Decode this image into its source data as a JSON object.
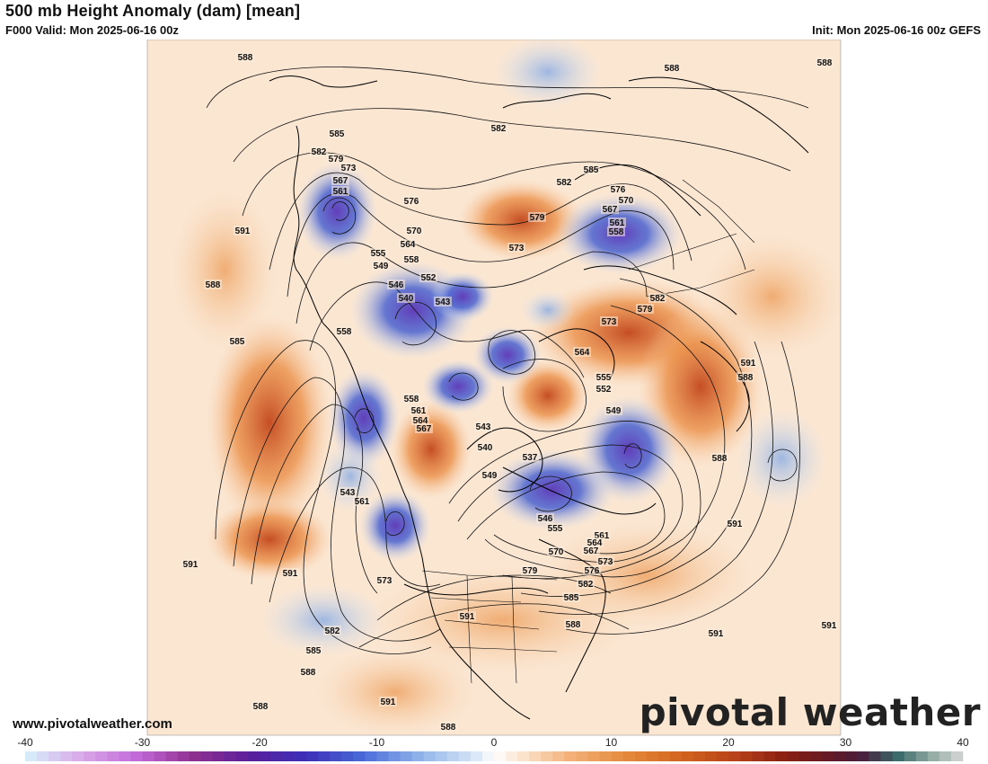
{
  "header": {
    "title": "500 mb Height Anomaly (dam) [mean]",
    "valid": "F000 Valid: Mon 2025-06-16 00z",
    "init": "Init: Mon 2025-06-16 00z GEFS"
  },
  "footer": {
    "website": "www.pivotalweather.com",
    "brand": "pivotal weather"
  },
  "colorbar": {
    "ticks": [
      "-40",
      "-30",
      "-20",
      "-10",
      "0",
      "10",
      "20",
      "30",
      "40"
    ],
    "colors": {
      "strong_negative": "#6a2fb8",
      "negative": "#3b55c9",
      "weak_negative": "#c9dcf2",
      "neutral": "#fbf3ea",
      "weak_positive": "#f7c79a",
      "positive": "#e0782e",
      "strong_positive": "#b8401a"
    }
  },
  "contour_labels": [
    "588",
    "588",
    "588",
    "585",
    "582",
    "579",
    "573",
    "567",
    "561",
    "576",
    "582",
    "585",
    "582",
    "579",
    "573",
    "576",
    "570",
    "567",
    "561",
    "558",
    "591",
    "570",
    "564",
    "558",
    "555",
    "549",
    "546",
    "552",
    "540",
    "543",
    "558",
    "588",
    "585",
    "582",
    "573",
    "579",
    "564",
    "555",
    "552",
    "549",
    "591",
    "588",
    "558",
    "561",
    "564",
    "567",
    "543",
    "540",
    "537",
    "549",
    "546",
    "555",
    "561",
    "564",
    "567",
    "570",
    "573",
    "576",
    "579",
    "582",
    "585",
    "588",
    "588",
    "591",
    "591",
    "591",
    "543",
    "561",
    "573",
    "582",
    "585",
    "588",
    "591",
    "591",
    "591",
    "591",
    "588",
    "588"
  ]
}
